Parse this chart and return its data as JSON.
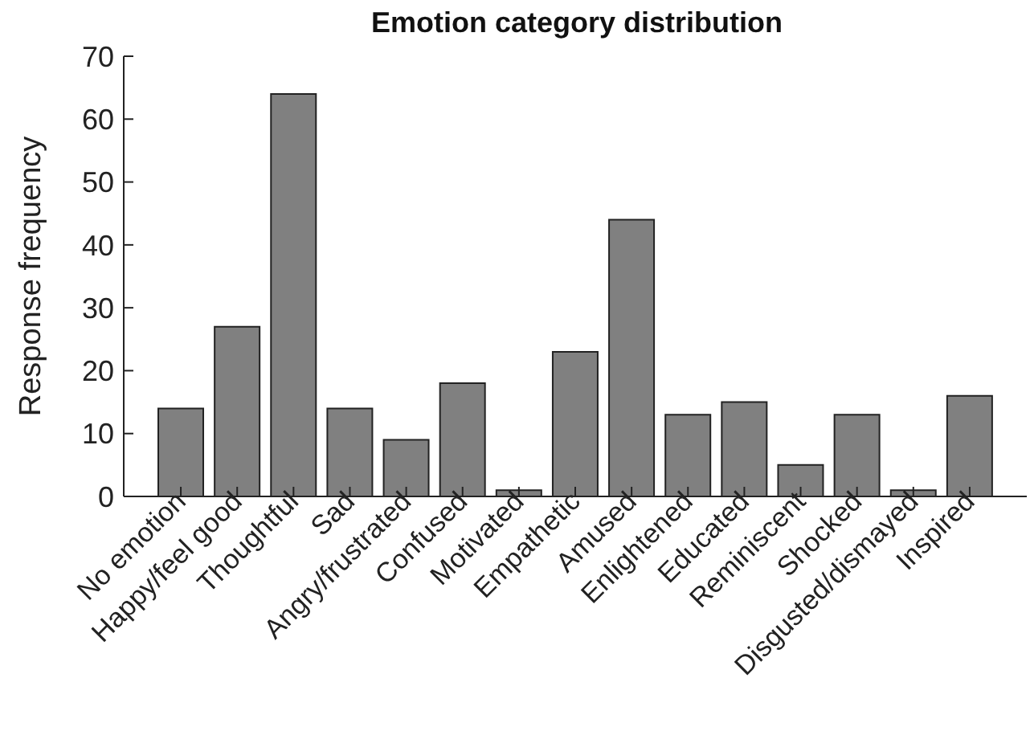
{
  "chart_data": {
    "type": "bar",
    "title": "Emotion category distribution",
    "ylabel": "Response frequency",
    "categories": [
      "No emotion",
      "Happy/feel good",
      "Thoughtful",
      "Sad",
      "Angry/frustrated",
      "Confused",
      "Motivated",
      "Empathetic",
      "Amused",
      "Enlightened",
      "Educated",
      "Reminiscent",
      "Shocked",
      "Disgusted/dismayed",
      "Inspired"
    ],
    "values": [
      14,
      27,
      64,
      14,
      9,
      18,
      1,
      23,
      44,
      13,
      15,
      5,
      13,
      1,
      16
    ],
    "color": "#808080",
    "ylim": [
      0,
      70
    ],
    "yticks": [
      0,
      10,
      20,
      30,
      40,
      50,
      60,
      70
    ],
    "grid": false
  }
}
